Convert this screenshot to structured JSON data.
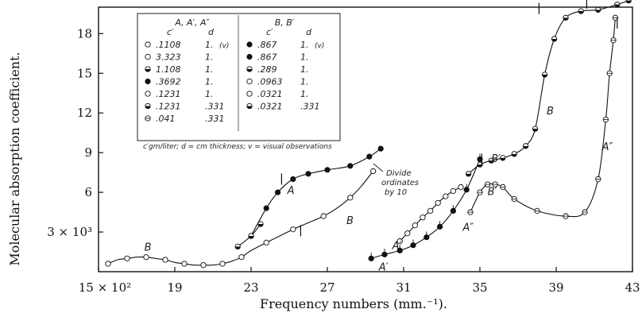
{
  "chart_data": {
    "type": "line",
    "title": "",
    "xlabel": "Frequency numbers (mm.⁻¹).",
    "ylabel": "Molecular absorption coefficient.",
    "xlim": [
      15,
      43
    ],
    "ylim": [
      0,
      20
    ],
    "x_ticks": [
      15,
      19,
      23,
      27,
      31,
      35,
      39,
      43
    ],
    "x_tick_labels": [
      "15 × 10²",
      "19",
      "23",
      "27",
      "31",
      "35",
      "39",
      "43"
    ],
    "y_ticks": [
      3,
      6,
      9,
      12,
      15,
      18
    ],
    "y_tick_labels": [
      "3 × 10³",
      "6",
      "9",
      "12",
      "15",
      "18"
    ],
    "grid": false,
    "legend": {
      "placement": "top-left",
      "group_a_header": "A, A′, A″",
      "group_b_header": "B, B′",
      "col_c": "c′",
      "col_d": "d",
      "rows_a": [
        {
          "c": ".1108",
          "d": "1.",
          "note": "(v)"
        },
        {
          "c": "3.323",
          "d": "1.",
          "note": ""
        },
        {
          "c": "1.108",
          "d": "1.",
          "note": ""
        },
        {
          "c": ".3692",
          "d": "1.",
          "note": ""
        },
        {
          "c": ".1231",
          "d": "1.",
          "note": ""
        },
        {
          "c": ".1231",
          "d": ".331",
          "note": ""
        },
        {
          "c": ".041",
          "d": ".331",
          "note": ""
        }
      ],
      "rows_b": [
        {
          "c": ".867",
          "d": "1.",
          "note": "(v)"
        },
        {
          "c": ".867",
          "d": "1.",
          "note": ""
        },
        {
          "c": ".289",
          "d": "1.",
          "note": ""
        },
        {
          "c": ".0963",
          "d": "1.",
          "note": ""
        },
        {
          "c": ".0321",
          "d": "1.",
          "note": ""
        },
        {
          "c": ".0321",
          "d": ".331",
          "note": ""
        }
      ],
      "footnote": "c′gm/liter; d = cm thickness; v = visual observations"
    },
    "annotations": [
      "Divide",
      "ordinates",
      "by 10"
    ],
    "series": [
      {
        "name": "A",
        "x": [
          23.0,
          23.8,
          24.4,
          25.2,
          26.0,
          27.0,
          28.2,
          29.2,
          29.8
        ],
        "y": [
          2.7,
          4.8,
          6.0,
          7.0,
          7.4,
          7.7,
          8.0,
          8.7,
          9.3
        ]
      },
      {
        "name": "B",
        "x": [
          15.5,
          16.0,
          16.5,
          17.0,
          17.5,
          18.0,
          18.5,
          19.0,
          19.5,
          20.0,
          20.5,
          21.0,
          21.5,
          22.0,
          22.5,
          23.0,
          23.8,
          24.5,
          25.2,
          26.0,
          26.8,
          27.5,
          28.2,
          28.8,
          29.4
        ],
        "y": [
          0.6,
          0.9,
          1.0,
          1.1,
          1.1,
          1.0,
          0.9,
          0.7,
          0.6,
          0.5,
          0.5,
          0.5,
          0.6,
          0.8,
          1.1,
          1.6,
          2.2,
          2.7,
          3.2,
          3.7,
          4.2,
          4.8,
          5.6,
          6.5,
          7.6
        ]
      },
      {
        "name": "A′",
        "x": [
          22.3,
          23.0,
          23.5
        ],
        "y": [
          1.9,
          2.7,
          3.6
        ]
      },
      {
        "name": "A′",
        "x": [
          29.3,
          30.0,
          30.8,
          31.5,
          32.2,
          32.9,
          33.6,
          34.3,
          35.0
        ],
        "y": [
          1.0,
          1.3,
          1.6,
          2.0,
          2.6,
          3.4,
          4.6,
          6.2,
          8.5
        ]
      },
      {
        "name": "B′",
        "x": [
          30.8,
          31.2,
          31.6,
          32.0,
          32.4,
          32.8,
          33.2,
          33.6,
          34.0
        ],
        "y": [
          2.3,
          2.9,
          3.5,
          4.1,
          4.6,
          5.2,
          5.7,
          6.1,
          6.4
        ]
      },
      {
        "name": "B",
        "x": [
          34.4,
          35.0,
          35.6,
          36.2,
          36.8,
          37.4,
          37.9,
          38.4,
          38.9,
          39.5,
          40.3,
          41.2,
          42.2,
          42.8
        ],
        "y": [
          7.4,
          8.1,
          8.4,
          8.6,
          8.9,
          9.5,
          10.8,
          14.9,
          17.6,
          19.2,
          19.7,
          19.8,
          20.2,
          20.5
        ]
      },
      {
        "name": "A″",
        "x": [
          34.5,
          35.0,
          35.4,
          35.8,
          36.2,
          36.8,
          38.0,
          39.5,
          40.5,
          41.2,
          41.6,
          41.8,
          42.0,
          42.1
        ],
        "y": [
          4.5,
          6.0,
          6.6,
          6.6,
          6.4,
          5.5,
          4.6,
          4.2,
          4.5,
          7.0,
          11.5,
          15.0,
          17.5,
          19.2
        ]
      }
    ]
  }
}
